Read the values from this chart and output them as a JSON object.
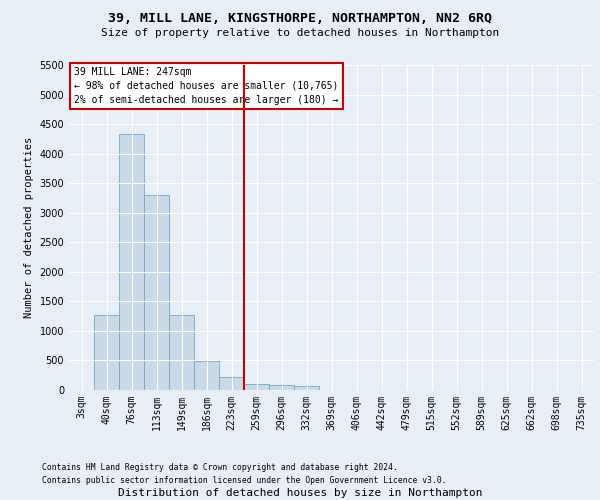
{
  "title1": "39, MILL LANE, KINGSTHORPE, NORTHAMPTON, NN2 6RQ",
  "title2": "Size of property relative to detached houses in Northampton",
  "xlabel": "Distribution of detached houses by size in Northampton",
  "ylabel": "Number of detached properties",
  "footnote1": "Contains HM Land Registry data © Crown copyright and database right 2024.",
  "footnote2": "Contains public sector information licensed under the Open Government Licence v3.0.",
  "annotation_line1": "39 MILL LANE: 247sqm",
  "annotation_line2": "← 98% of detached houses are smaller (10,765)",
  "annotation_line3": "2% of semi-detached houses are larger (180) →",
  "bar_labels": [
    "3sqm",
    "40sqm",
    "76sqm",
    "113sqm",
    "149sqm",
    "186sqm",
    "223sqm",
    "259sqm",
    "296sqm",
    "332sqm",
    "369sqm",
    "406sqm",
    "442sqm",
    "479sqm",
    "515sqm",
    "552sqm",
    "589sqm",
    "625sqm",
    "662sqm",
    "698sqm",
    "735sqm"
  ],
  "bar_values": [
    0,
    1270,
    4340,
    3300,
    1270,
    490,
    220,
    100,
    80,
    60,
    0,
    0,
    0,
    0,
    0,
    0,
    0,
    0,
    0,
    0,
    0
  ],
  "bar_color": "#c9d9e8",
  "bar_edge_color": "#6fa8c8",
  "vline_color": "#cc0000",
  "ylim": [
    0,
    5500
  ],
  "yticks": [
    0,
    500,
    1000,
    1500,
    2000,
    2500,
    3000,
    3500,
    4000,
    4500,
    5000,
    5500
  ],
  "bg_color": "#e8eef5",
  "plot_bg_color": "#e8eef5",
  "grid_color": "#ffffff",
  "annotation_box_color": "#cc0000"
}
